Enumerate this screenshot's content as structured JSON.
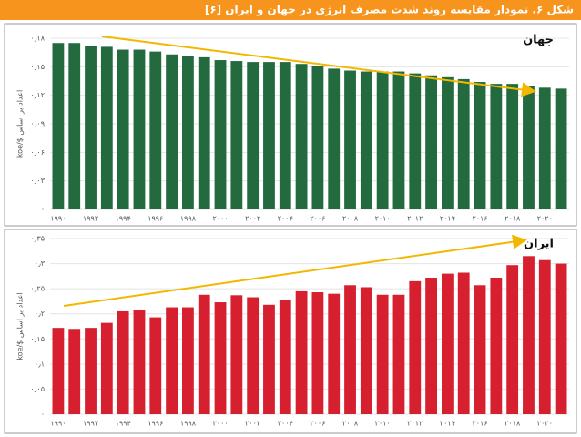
{
  "title": "شکل ۶. نمودار مقایسه روند شدت مصرف انرژی در جهان و ایران [۶]",
  "chart_data": [
    {
      "type": "bar",
      "label": "جهان",
      "y_label": "koe/$ اعداد بر اساس",
      "color": "#236b3f",
      "categories": [
        "۱۹۹۰",
        null,
        "۱۹۹۲",
        null,
        "۱۹۹۴",
        null,
        "۱۹۹۶",
        null,
        "۱۹۹۸",
        null,
        "۲۰۰۰",
        null,
        "۲۰۰۲",
        null,
        "۲۰۰۴",
        null,
        "۲۰۰۶",
        null,
        "۲۰۰۸",
        null,
        "۲۰۱۰",
        null,
        "۲۰۱۲",
        null,
        "۲۰۱۴",
        null,
        "۲۰۱۶",
        null,
        "۲۰۱۸",
        null,
        "۲۰۲۰",
        null
      ],
      "values": [
        0.175,
        0.175,
        0.172,
        0.171,
        0.168,
        0.168,
        0.166,
        0.163,
        0.161,
        0.16,
        0.157,
        0.156,
        0.155,
        0.155,
        0.155,
        0.153,
        0.151,
        0.148,
        0.146,
        0.145,
        0.145,
        0.145,
        0.143,
        0.141,
        0.139,
        0.137,
        0.134,
        0.132,
        0.132,
        0.13,
        0.128,
        0.127
      ],
      "ylim": [
        0,
        0.18
      ],
      "yticks": [
        {
          "value": 0,
          "label": "۰"
        },
        {
          "value": 0.03,
          "label": "۰٫۰۳"
        },
        {
          "value": 0.06,
          "label": "۰٫۰۶"
        },
        {
          "value": 0.09,
          "label": "۰٫۰۹"
        },
        {
          "value": 0.12,
          "label": "۰٫۱۲"
        },
        {
          "value": 0.15,
          "label": "۰٫۱۵"
        },
        {
          "value": 0.18,
          "label": "۰٫۱۸"
        }
      ],
      "grid": true
    },
    {
      "type": "bar",
      "label": "ایران",
      "y_label": "koe/$ اعداد بر اساس",
      "color": "#d7202f",
      "categories": [
        "۱۹۹۰",
        null,
        "۱۹۹۲",
        null,
        "۱۹۹۴",
        null,
        "۱۹۹۶",
        null,
        "۱۹۹۸",
        null,
        "۲۰۰۰",
        null,
        "۲۰۰۲",
        null,
        "۲۰۰۴",
        null,
        "۲۰۰۶",
        null,
        "۲۰۰۸",
        null,
        "۲۰۱۰",
        null,
        "۲۰۱۲",
        null,
        "۲۰۱۴",
        null,
        "۲۰۱۶",
        null,
        "۲۰۱۸",
        null,
        "۲۰۲۰",
        null
      ],
      "values": [
        0.172,
        0.17,
        0.172,
        0.182,
        0.205,
        0.208,
        0.193,
        0.213,
        0.213,
        0.238,
        0.223,
        0.237,
        0.233,
        0.218,
        0.228,
        0.245,
        0.243,
        0.24,
        0.257,
        0.253,
        0.238,
        0.238,
        0.265,
        0.272,
        0.28,
        0.282,
        0.257,
        0.272,
        0.297,
        0.315,
        0.307,
        0.3
      ],
      "ylim": [
        0,
        0.35
      ],
      "yticks": [
        {
          "value": 0,
          "label": "۰"
        },
        {
          "value": 0.05,
          "label": "۰٫۰۵"
        },
        {
          "value": 0.1,
          "label": "۰٫۱"
        },
        {
          "value": 0.15,
          "label": "۰٫۱۵"
        },
        {
          "value": 0.2,
          "label": "۰٫۲"
        },
        {
          "value": 0.25,
          "label": "۰٫۲۵"
        },
        {
          "value": 0.3,
          "label": "۰٫۳"
        },
        {
          "value": 0.35,
          "label": "۰٫۳۵"
        }
      ],
      "grid": true
    }
  ]
}
